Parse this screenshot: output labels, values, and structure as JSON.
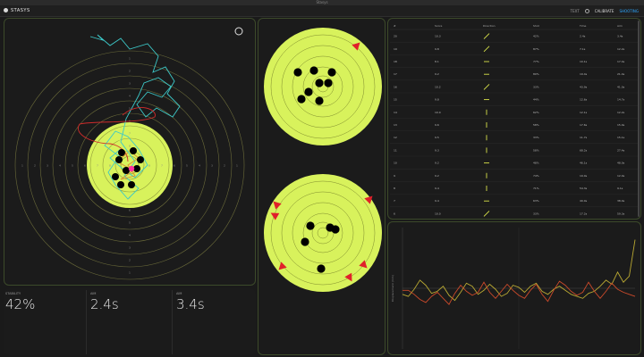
{
  "window": {
    "title": "Stasys"
  },
  "app": {
    "brand": "STASYS"
  },
  "header": {
    "item1": "TEXT",
    "calibrate": "CALIBRATE",
    "shooting": "SHOOTING"
  },
  "colors": {
    "accent": "#2ea7ff",
    "target": "#d8f25c",
    "panel_border": "#3c4a2a",
    "marker": "#e0202a"
  },
  "stats": [
    {
      "label": "STABILITY",
      "value": "42%"
    },
    {
      "label": "AIM",
      "value": "2.4s"
    },
    {
      "label": "AIM",
      "value": "3.4s"
    }
  ],
  "target_rings": {
    "left": [
      "1",
      "2",
      "3",
      "4",
      "5",
      "6",
      "7",
      "8"
    ],
    "right": [
      "1",
      "2",
      "3",
      "4",
      "5",
      "6",
      "7",
      "8"
    ],
    "top": [
      "1",
      "2",
      "3",
      "4",
      "5",
      "6",
      "7",
      "8"
    ],
    "bottom": [
      "1",
      "2",
      "3",
      "4",
      "5",
      "6",
      "7",
      "8"
    ]
  },
  "table": {
    "columns": [
      "#",
      "Score",
      "Direction",
      "Shot",
      "Time",
      "Aim"
    ],
    "rows": [
      [
        "20",
        "10.3",
        "/",
        "42%",
        "2.4s",
        "3.4s"
      ],
      [
        "19",
        "9.8",
        "/",
        "87%",
        "7.1s",
        "12.2s"
      ],
      [
        "18",
        "8.1",
        "-",
        "77%",
        "10.1s",
        "17.4s"
      ],
      [
        "17",
        "9.2",
        "-",
        "80%",
        "19.4s",
        "21.4s"
      ],
      [
        "16",
        "10.2",
        "/",
        "33%",
        "43.9s",
        "41.0s"
      ],
      [
        "15",
        "9.8",
        "-",
        "44%",
        "12.6s",
        "14.7s"
      ],
      [
        "14",
        "10.0",
        "|",
        "62%",
        "12.1s",
        "12.2s"
      ],
      [
        "13",
        "9.6",
        "|",
        "58%",
        "17.6s",
        "15.0s"
      ],
      [
        "12",
        "9.5",
        "|",
        "33%",
        "11.7s",
        "15.1s"
      ],
      [
        "11",
        "9.3",
        "|",
        "58%",
        "68.2s",
        "27.4s"
      ],
      [
        "10",
        "9.2",
        "-",
        "48%",
        "46.1s",
        "48.0s"
      ],
      [
        "9",
        "9.2",
        "|",
        "74%",
        "19.0s",
        "12.0s"
      ],
      [
        "8",
        "9.4",
        "|",
        "71%",
        "54.3s",
        "9.1s"
      ],
      [
        "7",
        "9.4",
        "-",
        "63%",
        "49.0s",
        "38.0s"
      ],
      [
        "6",
        "10.0",
        "/",
        "33%",
        "17.2s",
        "59.3s"
      ]
    ]
  },
  "chart_data": {
    "type": "line",
    "title": "",
    "ylabel": "Displacement (mm)",
    "x": [
      0,
      1,
      2,
      3,
      4,
      5,
      6,
      7,
      8,
      9,
      10,
      11,
      12,
      13,
      14,
      15,
      16,
      17,
      18,
      19,
      20,
      21,
      22,
      23,
      24,
      25,
      26,
      27,
      28,
      29,
      30,
      31,
      32,
      33,
      34,
      35,
      36,
      37,
      38,
      39,
      40
    ],
    "series": [
      {
        "color": "#b9a832",
        "values": [
          -6,
          -8,
          -1,
          8,
          3,
          -5,
          -3,
          2,
          -7,
          -12,
          -4,
          5,
          2,
          -6,
          -2,
          4,
          -1,
          -8,
          -5,
          3,
          1,
          -4,
          2,
          5,
          -3,
          -6,
          -1,
          2,
          -2,
          -6,
          -8,
          -10,
          -5,
          -3,
          2,
          8,
          4,
          16,
          6,
          12,
          48
        ]
      },
      {
        "color": "#cc4a2a",
        "values": [
          -2,
          -2,
          -6,
          -11,
          -14,
          -8,
          -4,
          -10,
          -16,
          -5,
          3,
          -3,
          -7,
          -4,
          6,
          -4,
          -10,
          -3,
          4,
          -2,
          -7,
          -10,
          -2,
          4,
          -6,
          -13,
          -2,
          7,
          3,
          -3,
          -7,
          -4,
          6,
          -3,
          -10,
          -3,
          5,
          -1,
          -4,
          -6,
          -8
        ]
      }
    ],
    "ylim": [
      -60,
      60
    ],
    "xlim": [
      0,
      40
    ],
    "grid": true
  }
}
